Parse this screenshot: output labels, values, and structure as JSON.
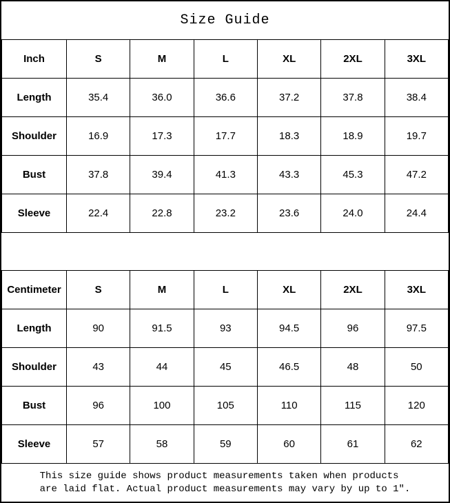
{
  "title": "Size Guide",
  "inch_table": {
    "header": [
      "Inch",
      "S",
      "M",
      "L",
      "XL",
      "2XL",
      "3XL"
    ],
    "rows": [
      {
        "label": "Length",
        "values": [
          "35.4",
          "36.0",
          "36.6",
          "37.2",
          "37.8",
          "38.4"
        ]
      },
      {
        "label": "Shoulder",
        "values": [
          "16.9",
          "17.3",
          "17.7",
          "18.3",
          "18.9",
          "19.7"
        ]
      },
      {
        "label": "Bust",
        "values": [
          "37.8",
          "39.4",
          "41.3",
          "43.3",
          "45.3",
          "47.2"
        ]
      },
      {
        "label": "Sleeve",
        "values": [
          "22.4",
          "22.8",
          "23.2",
          "23.6",
          "24.0",
          "24.4"
        ]
      }
    ]
  },
  "cm_table": {
    "header": [
      "Centimeter",
      "S",
      "M",
      "L",
      "XL",
      "2XL",
      "3XL"
    ],
    "rows": [
      {
        "label": "Length",
        "values": [
          "90",
          "91.5",
          "93",
          "94.5",
          "96",
          "97.5"
        ]
      },
      {
        "label": "Shoulder",
        "values": [
          "43",
          "44",
          "45",
          "46.5",
          "48",
          "50"
        ]
      },
      {
        "label": "Bust",
        "values": [
          "96",
          "100",
          "105",
          "110",
          "115",
          "120"
        ]
      },
      {
        "label": "Sleeve",
        "values": [
          "57",
          "58",
          "59",
          "60",
          "61",
          "62"
        ]
      }
    ]
  },
  "footer": {
    "note": "This size guide shows product measurements taken when products\nare laid flat. Actual product measurements may vary by up to 1″."
  },
  "colors": {
    "border": "#000000",
    "background": "#ffffff",
    "text": "#000000"
  }
}
